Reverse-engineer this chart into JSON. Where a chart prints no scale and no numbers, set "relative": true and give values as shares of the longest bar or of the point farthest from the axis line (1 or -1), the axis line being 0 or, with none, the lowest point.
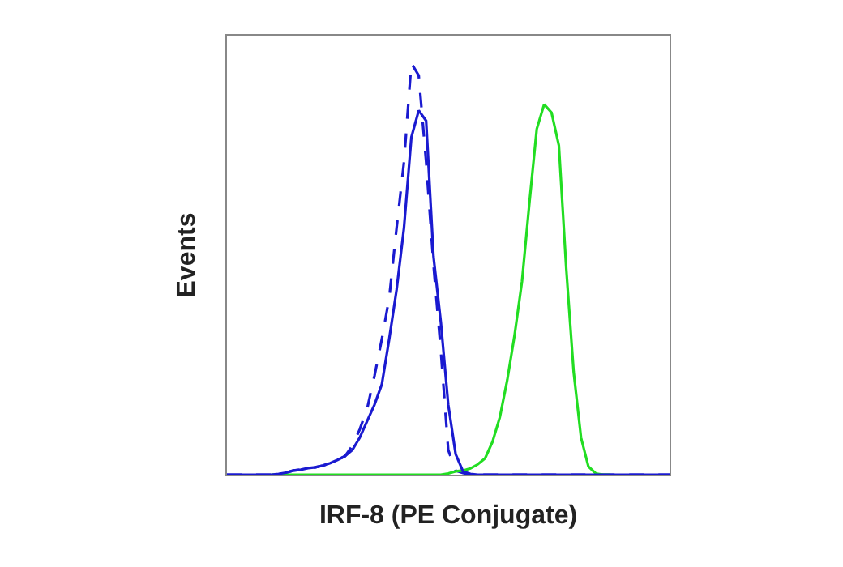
{
  "chart_data": {
    "type": "line",
    "relative": true,
    "xlabel": "IRF-8 (PE Conjugate)",
    "ylabel": "Events",
    "grid": false,
    "marker": "none",
    "categories": [
      null,
      null,
      null,
      null,
      null,
      null,
      null,
      null,
      null,
      null,
      null,
      null,
      null,
      null,
      null,
      null,
      null,
      null,
      null,
      null,
      null,
      null,
      null,
      null,
      null,
      null,
      null,
      null,
      null,
      null,
      null,
      null,
      null,
      null,
      null,
      null,
      null,
      null,
      null,
      null,
      null,
      null,
      null,
      null,
      null,
      null,
      null,
      null,
      null,
      null,
      null,
      null,
      null,
      null,
      null,
      null,
      null,
      null,
      null,
      null,
      null
    ],
    "series": [
      {
        "color": "#1a1ad0",
        "line_style": "dashed",
        "values": [
          0,
          0,
          0,
          0,
          0,
          0,
          0,
          0.002,
          0.005,
          0.01,
          0.012,
          0.016,
          0.018,
          0.022,
          0.028,
          0.036,
          0.045,
          0.07,
          0.11,
          0.16,
          0.24,
          0.33,
          0.43,
          0.6,
          0.76,
          1,
          0.97,
          0.76,
          0.51,
          0.3,
          0.06,
          0.01,
          0.004,
          0,
          0,
          0,
          0,
          0,
          0,
          0,
          0,
          0,
          0,
          0,
          0,
          0,
          0,
          0,
          0,
          0,
          0,
          0,
          0,
          0,
          0,
          0,
          0,
          0,
          0,
          0,
          0
        ]
      },
      {
        "color": "#22dd22",
        "line_style": "solid",
        "values": [
          null,
          null,
          null,
          null,
          null,
          null,
          0,
          0,
          0,
          0,
          0,
          0,
          0,
          0,
          0,
          0,
          0,
          0,
          0,
          0,
          0,
          0,
          0,
          0,
          0,
          0,
          0,
          0,
          0,
          0,
          0.003,
          0.008,
          0.01,
          0.015,
          0.025,
          0.04,
          0.08,
          0.14,
          0.23,
          0.34,
          0.47,
          0.66,
          0.84,
          0.9,
          0.88,
          0.8,
          0.5,
          0.25,
          0.09,
          0.02,
          0.003,
          0,
          0,
          null,
          null,
          null,
          null,
          null,
          null,
          null,
          null
        ]
      },
      {
        "color": "#1a1ad0",
        "line_style": "solid",
        "values": [
          0,
          0,
          0,
          0,
          0,
          0,
          0,
          0.002,
          0.005,
          0.01,
          0.012,
          0.016,
          0.018,
          0.022,
          0.028,
          0.036,
          0.045,
          0.06,
          0.09,
          0.13,
          0.17,
          0.22,
          0.33,
          0.45,
          0.6,
          0.82,
          0.885,
          0.86,
          0.53,
          0.37,
          0.17,
          0.05,
          0.008,
          0.002,
          0,
          0,
          0,
          0,
          0,
          0,
          0,
          0,
          0,
          0,
          0,
          0,
          0,
          0,
          0,
          0,
          0,
          0,
          0,
          0,
          0,
          0,
          0,
          0,
          0,
          0,
          0
        ]
      }
    ]
  }
}
